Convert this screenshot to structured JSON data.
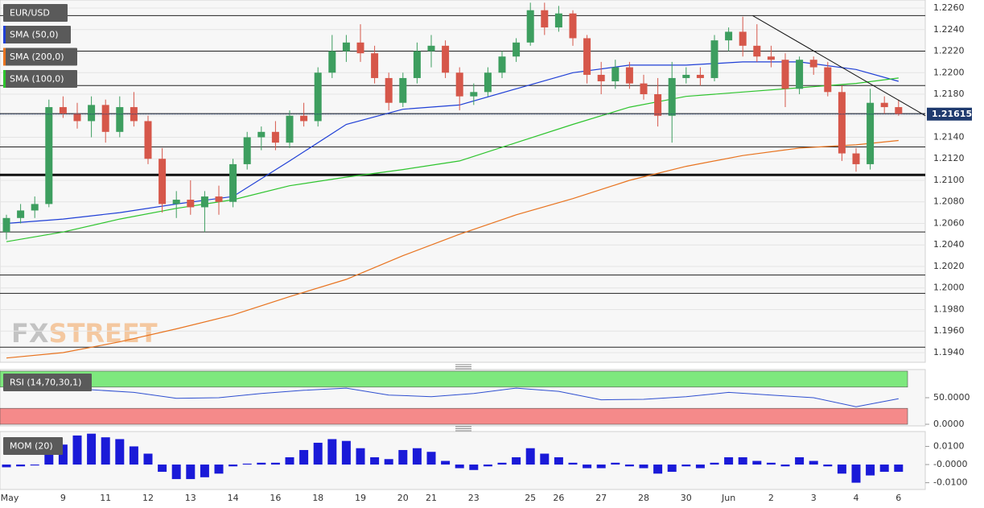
{
  "chart_data": [
    {
      "type": "candlestick",
      "title": "EUR/USD",
      "categories": [
        "May",
        null,
        null,
        null,
        "9",
        null,
        null,
        "11",
        null,
        null,
        "12",
        null,
        null,
        "13",
        null,
        null,
        "14",
        null,
        null,
        "16",
        null,
        null,
        "18",
        null,
        null,
        "19",
        null,
        null,
        "20",
        null,
        "21",
        null,
        null,
        "23",
        null,
        null,
        null,
        "25",
        null,
        "26",
        null,
        null,
        "27",
        null,
        null,
        "28",
        null,
        null,
        "30",
        null,
        null,
        "Jun",
        null,
        null,
        "2",
        null,
        null,
        "3",
        null,
        null,
        "4",
        null,
        null,
        "6"
      ],
      "open": [
        1.2052,
        1.2065,
        1.2072,
        1.2078,
        1.2168,
        1.2162,
        1.2155,
        1.217,
        1.2145,
        1.2168,
        1.2155,
        1.212,
        1.2078,
        1.2082,
        1.2075,
        1.2085,
        1.208,
        1.2115,
        1.214,
        1.2145,
        1.2135,
        1.216,
        1.2155,
        1.22,
        1.222,
        1.2228,
        1.2218,
        1.2195,
        1.2172,
        1.2195,
        1.222,
        1.2225,
        1.22,
        1.2178,
        1.2182,
        1.22,
        1.2215,
        1.2228,
        1.2258,
        1.2242,
        1.2255,
        1.2232,
        1.2198,
        1.2192,
        1.2205,
        1.219,
        1.218,
        1.216,
        1.2195,
        1.2198,
        1.2195,
        1.223,
        1.2238,
        1.2225,
        1.2215,
        1.2212,
        1.2185,
        1.2212,
        1.2205,
        1.2182,
        1.2125,
        1.2115,
        1.2172,
        1.2168
      ],
      "high": [
        1.2068,
        1.2078,
        1.2085,
        1.2175,
        1.2178,
        1.2172,
        1.2178,
        1.2175,
        1.2178,
        1.2182,
        1.216,
        1.213,
        1.209,
        1.21,
        1.209,
        1.2095,
        1.212,
        1.2145,
        1.215,
        1.2155,
        1.2165,
        1.2172,
        1.2205,
        1.2235,
        1.2235,
        1.2245,
        1.2225,
        1.22,
        1.22,
        1.2228,
        1.2235,
        1.223,
        1.2205,
        1.219,
        1.2205,
        1.222,
        1.2232,
        1.2265,
        1.2265,
        1.2262,
        1.2258,
        1.2235,
        1.221,
        1.2212,
        1.221,
        1.2198,
        1.2195,
        1.221,
        1.2205,
        1.2205,
        1.2235,
        1.2242,
        1.2252,
        1.2245,
        1.2225,
        1.2218,
        1.2215,
        1.2215,
        1.221,
        1.2188,
        1.213,
        1.2185,
        1.2178,
        1.2175
      ],
      "low": [
        1.2045,
        1.206,
        1.2065,
        1.2075,
        1.2158,
        1.2148,
        1.214,
        1.2135,
        1.214,
        1.215,
        1.2115,
        1.207,
        1.2065,
        1.2068,
        1.2052,
        1.2068,
        1.2075,
        1.211,
        1.2128,
        1.2128,
        1.213,
        1.215,
        1.215,
        1.2195,
        1.221,
        1.221,
        1.219,
        1.2165,
        1.2168,
        1.219,
        1.2205,
        1.2195,
        1.2165,
        1.217,
        1.2178,
        1.2195,
        1.221,
        1.2225,
        1.2235,
        1.2238,
        1.2225,
        1.219,
        1.218,
        1.2185,
        1.2185,
        1.2175,
        1.215,
        1.2135,
        1.219,
        1.2188,
        1.2192,
        1.222,
        1.2215,
        1.221,
        1.2205,
        1.2168,
        1.218,
        1.2198,
        1.2178,
        1.2118,
        1.2108,
        1.211,
        1.2162,
        1.216
      ],
      "close": [
        1.2065,
        1.2072,
        1.2078,
        1.2168,
        1.2162,
        1.2155,
        1.217,
        1.2145,
        1.2168,
        1.2155,
        1.212,
        1.2078,
        1.2082,
        1.2075,
        1.2085,
        1.208,
        1.2115,
        1.214,
        1.2145,
        1.2135,
        1.216,
        1.2155,
        1.22,
        1.222,
        1.2228,
        1.2218,
        1.2195,
        1.2172,
        1.2195,
        1.222,
        1.2225,
        1.22,
        1.2178,
        1.2182,
        1.22,
        1.2215,
        1.2228,
        1.2258,
        1.2242,
        1.2255,
        1.2232,
        1.2198,
        1.2192,
        1.2205,
        1.219,
        1.218,
        1.216,
        1.2195,
        1.2198,
        1.2195,
        1.223,
        1.2238,
        1.2225,
        1.2215,
        1.2212,
        1.2185,
        1.2212,
        1.2205,
        1.2182,
        1.2125,
        1.2115,
        1.2172,
        1.2168,
        1.21615
      ],
      "up_color": "#3d9e5f",
      "down_color": "#d6574a",
      "series": [
        {
          "name": "SMA (50,0)",
          "color": "#1f3fd6",
          "x": [
            0,
            4,
            8,
            12,
            16,
            20,
            24,
            28,
            32,
            36,
            40,
            44,
            48,
            52,
            56,
            60,
            63
          ],
          "values": [
            1.206,
            1.2064,
            1.207,
            1.2078,
            1.2085,
            1.2118,
            1.2152,
            1.2166,
            1.217,
            1.2185,
            1.22,
            1.2207,
            1.2207,
            1.221,
            1.221,
            1.2203,
            1.2192
          ]
        },
        {
          "name": "SMA (200,0)",
          "color": "#e8731f",
          "x": [
            0,
            4,
            8,
            12,
            16,
            20,
            24,
            28,
            32,
            36,
            40,
            44,
            48,
            52,
            56,
            60,
            63
          ],
          "values": [
            1.1935,
            1.194,
            1.195,
            1.1962,
            1.1975,
            1.1992,
            1.2008,
            1.203,
            1.205,
            1.2068,
            1.2083,
            1.21,
            1.2113,
            1.2123,
            1.213,
            1.2133,
            1.2137
          ]
        },
        {
          "name": "SMA (100,0)",
          "color": "#2ec42e",
          "x": [
            0,
            4,
            8,
            12,
            16,
            20,
            24,
            28,
            32,
            36,
            40,
            44,
            48,
            52,
            56,
            60,
            63
          ],
          "values": [
            1.2043,
            1.2052,
            1.2064,
            1.2074,
            1.2082,
            1.2095,
            1.2103,
            1.211,
            1.2118,
            1.2135,
            1.2152,
            1.2168,
            1.2178,
            1.2182,
            1.2186,
            1.219,
            1.2195
          ]
        }
      ],
      "levels": [
        1.2253,
        1.222,
        1.2188,
        1.2162,
        1.2131,
        1.2052,
        1.2012,
        1.1995,
        1.1945
      ],
      "key_level": 1.2105,
      "trendline": {
        "x": [
          52.7,
          64.9
        ],
        "y": [
          1.2253,
          1.216
        ]
      },
      "last_price": 1.21615,
      "ylim": [
        1.1931,
        1.2266
      ],
      "yticks": [
        {
          "value": 1.226,
          "label": "1.2260"
        },
        {
          "value": 1.224,
          "label": "1.2240"
        },
        {
          "value": 1.222,
          "label": "1.2220"
        },
        {
          "value": 1.22,
          "label": "1.2200"
        },
        {
          "value": 1.218,
          "label": "1.2180"
        },
        {
          "value": 1.216,
          "label": "1.2160"
        },
        {
          "value": 1.214,
          "label": "1.2140"
        },
        {
          "value": 1.212,
          "label": "1.2120"
        },
        {
          "value": 1.21,
          "label": "1.2100"
        },
        {
          "value": 1.208,
          "label": "1.2080"
        },
        {
          "value": 1.206,
          "label": "1.2060"
        },
        {
          "value": 1.204,
          "label": "1.2040"
        },
        {
          "value": 1.202,
          "label": "1.2020"
        },
        {
          "value": 1.2,
          "label": "1.2000"
        },
        {
          "value": 1.198,
          "label": "1.1980"
        },
        {
          "value": 1.196,
          "label": "1.1960"
        },
        {
          "value": 1.194,
          "label": "1.1940"
        }
      ],
      "grid": true,
      "watermark": [
        "FX",
        "STREET"
      ]
    },
    {
      "type": "line",
      "title": "RSI (14,70,30,1)",
      "series": [
        {
          "color": "#2f4fd0",
          "x": [
            0,
            3,
            6,
            9,
            12,
            15,
            18,
            21,
            24,
            27,
            30,
            33,
            36,
            39,
            42,
            45,
            48,
            51,
            54,
            57,
            60,
            63
          ],
          "values": [
            63,
            70,
            65,
            60,
            49,
            50,
            58,
            64,
            68,
            55,
            52,
            58,
            68,
            62,
            46,
            47,
            52,
            60,
            55,
            50,
            33,
            48
          ]
        }
      ],
      "bands": [
        {
          "range": [
            70,
            100
          ],
          "color": "#7ee87e"
        },
        {
          "range": [
            0,
            30
          ],
          "color": "#f58a8a"
        }
      ],
      "ylim": [
        0,
        100
      ],
      "yticks": [
        {
          "value": 50,
          "label": "50.0000"
        },
        {
          "value": 0,
          "label": "0.0000"
        }
      ]
    },
    {
      "type": "bar",
      "title": "MOM (20)",
      "color": "#1a1ad8",
      "values": [
        -0.0015,
        -0.001,
        -0.0005,
        0.008,
        0.011,
        0.016,
        0.017,
        0.015,
        0.014,
        0.01,
        0.006,
        -0.004,
        -0.008,
        -0.008,
        -0.007,
        -0.005,
        -0.001,
        0.0005,
        0.001,
        0.001,
        0.004,
        0.008,
        0.012,
        0.014,
        0.013,
        0.009,
        0.004,
        0.003,
        0.008,
        0.009,
        0.007,
        0.002,
        -0.002,
        -0.003,
        -0.001,
        0.001,
        0.004,
        0.009,
        0.006,
        0.004,
        0.001,
        -0.002,
        -0.002,
        0.001,
        -0.001,
        -0.002,
        -0.005,
        -0.004,
        -0.001,
        -0.002,
        0.001,
        0.004,
        0.004,
        0.002,
        0.001,
        -0.001,
        0.004,
        0.002,
        -0.001,
        -0.005,
        -0.01,
        -0.006,
        -0.004,
        -0.004
      ],
      "ylim": [
        -0.0124,
        0.0173
      ],
      "yticks": [
        {
          "value": 0.01,
          "label": "0.0100"
        },
        {
          "value": 0,
          "label": "-0.0000"
        },
        {
          "value": -0.01,
          "label": "-0.0100"
        }
      ]
    }
  ]
}
